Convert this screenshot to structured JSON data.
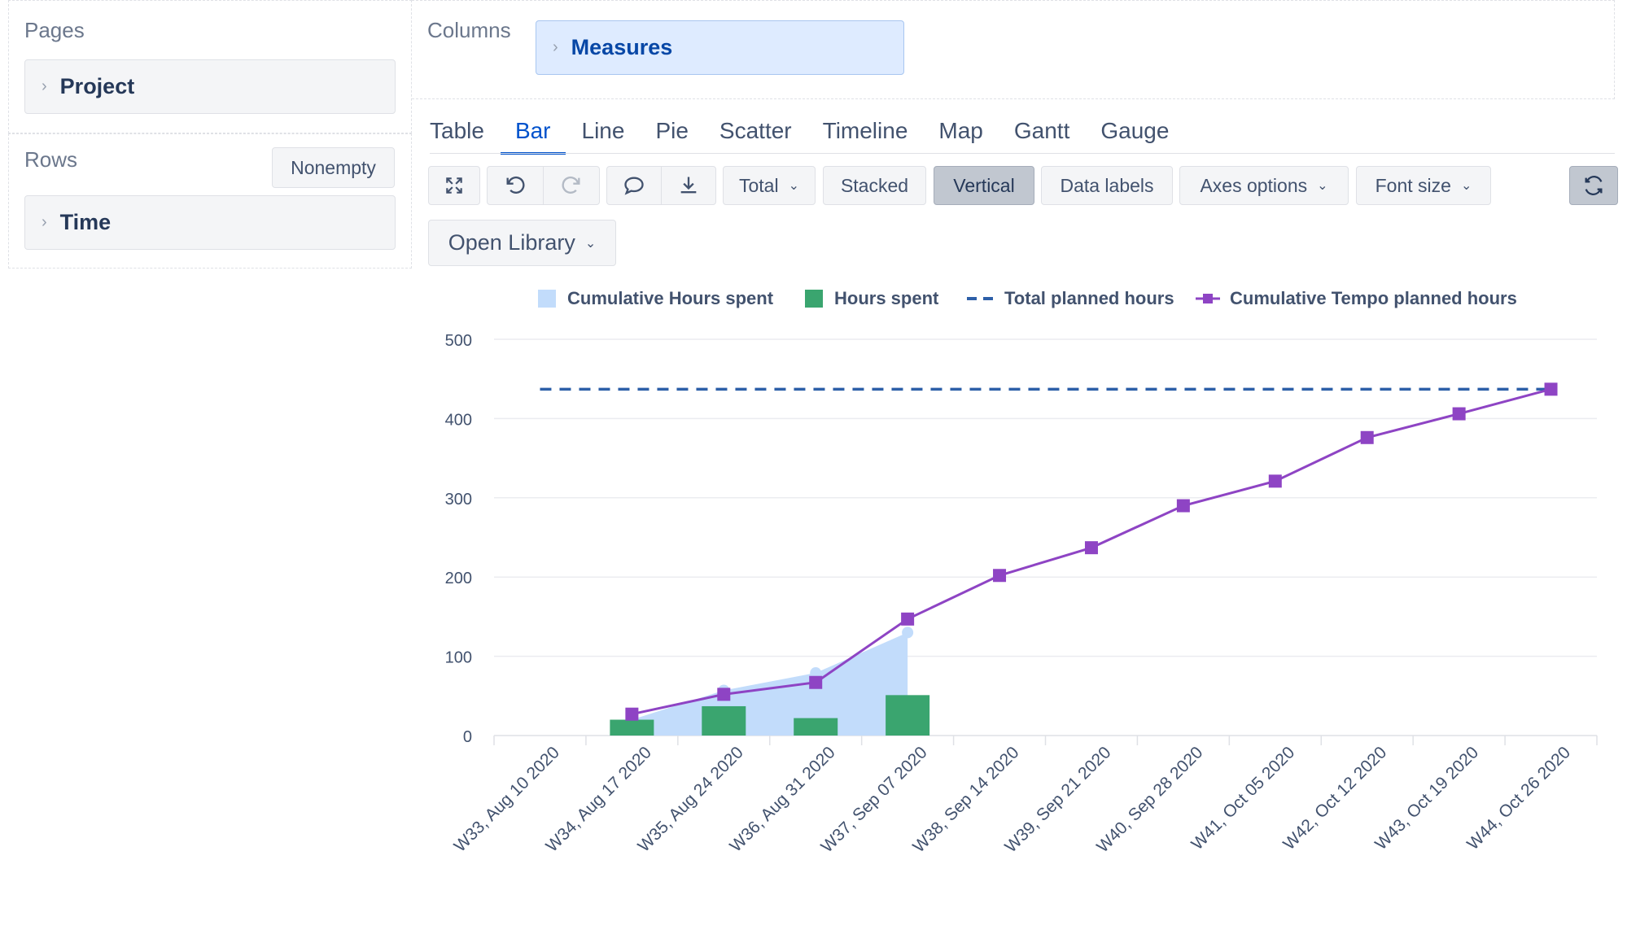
{
  "pages": {
    "title": "Pages",
    "item": "Project"
  },
  "rows": {
    "title": "Rows",
    "nonempty_label": "Nonempty",
    "item": "Time"
  },
  "columns": {
    "title": "Columns",
    "item": "Measures"
  },
  "tabs": [
    "Table",
    "Bar",
    "Line",
    "Pie",
    "Scatter",
    "Timeline",
    "Map",
    "Gantt",
    "Gauge"
  ],
  "active_tab": "Bar",
  "toolbar": {
    "total_label": "Total",
    "stacked_label": "Stacked",
    "vertical_label": "Vertical",
    "data_labels_label": "Data labels",
    "axes_options_label": "Axes options",
    "font_size_label": "Font size",
    "open_library_label": "Open Library"
  },
  "colors": {
    "cumulative_hours_spent": "#c2dcfb",
    "hours_spent": "#3aa56f",
    "total_planned": "#2d5fa8",
    "cumulative_tempo": "#8e44c4",
    "accent": "#0052cc"
  },
  "chart_data": {
    "type": "bar",
    "categories": [
      "W33, Aug 10 2020",
      "W34, Aug 17 2020",
      "W35, Aug 24 2020",
      "W36, Aug 31 2020",
      "W37, Sep 07 2020",
      "W38, Sep 14 2020",
      "W39, Sep 21 2020",
      "W40, Sep 28 2020",
      "W41, Oct 05 2020",
      "W42, Oct 12 2020",
      "W43, Oct 19 2020",
      "W44, Oct 26 2020"
    ],
    "ylim": [
      0,
      500
    ],
    "yticks": [
      0,
      100,
      200,
      300,
      400,
      500
    ],
    "grid": true,
    "legend_position": "top",
    "series": [
      {
        "name": "Cumulative Hours spent",
        "type": "area",
        "values": [
          null,
          20,
          57,
          79,
          130,
          null,
          null,
          null,
          null,
          null,
          null,
          null
        ]
      },
      {
        "name": "Hours spent",
        "type": "bar",
        "values": [
          null,
          20,
          37,
          22,
          51,
          null,
          null,
          null,
          null,
          null,
          null,
          null
        ]
      },
      {
        "name": "Total planned hours",
        "type": "dashed-line",
        "values": [
          437,
          437,
          437,
          437,
          437,
          437,
          437,
          437,
          437,
          437,
          437,
          437
        ]
      },
      {
        "name": "Cumulative Tempo planned hours",
        "type": "line",
        "values": [
          null,
          27,
          52,
          67,
          147,
          202,
          237,
          290,
          321,
          376,
          406,
          437
        ]
      }
    ]
  }
}
